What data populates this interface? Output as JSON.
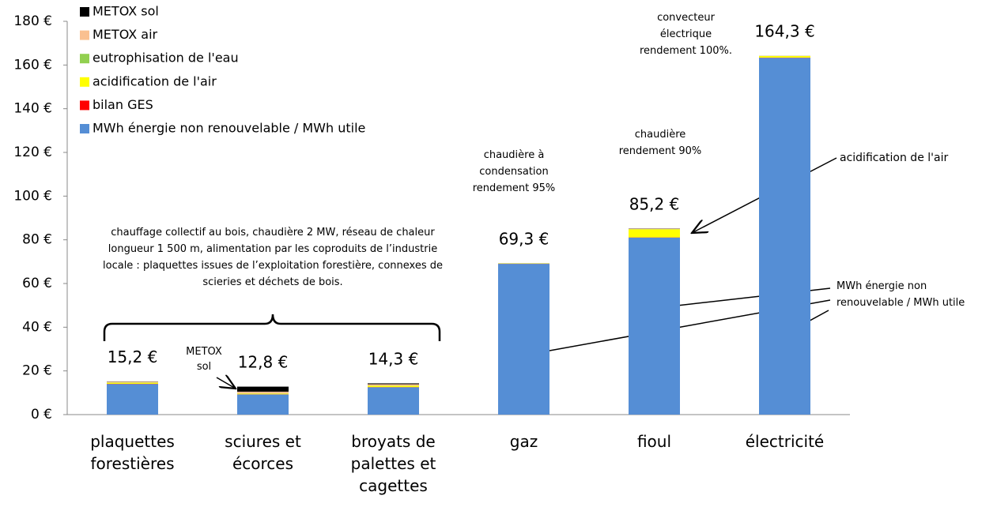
{
  "chart_data": {
    "type": "stacked_bar",
    "categories": [
      "plaquettes forestières",
      "sciures et écorces",
      "broyats de palettes et cagettes",
      "gaz",
      "fioul",
      "électricité"
    ],
    "series": [
      {
        "name": "MWh énergie non renouvelable / MWh utile",
        "color": "#558ed5",
        "values": [
          14,
          9.2,
          12.5,
          69,
          81,
          163.3
        ]
      },
      {
        "name": "bilan GES",
        "color": "#ff0000",
        "values": [
          0.1,
          0.1,
          0.1,
          0.1,
          0.1,
          0.1
        ]
      },
      {
        "name": "acidification de l'air",
        "color": "#ffff00",
        "values": [
          0.5,
          0.3,
          0.6,
          0.1,
          3.7,
          0.7
        ]
      },
      {
        "name": "eutrophisation de l'eau",
        "color": "#92d050",
        "values": [
          0.1,
          0.1,
          0.1,
          0.1,
          0.1,
          0.1
        ]
      },
      {
        "name": "METOX air",
        "color": "#fac090",
        "values": [
          0.4,
          0.8,
          0.6,
          0,
          0.2,
          0.1
        ]
      },
      {
        "name": "METOX sol",
        "color": "#000000",
        "values": [
          0.1,
          2.3,
          0.4,
          0,
          0.1,
          0
        ]
      }
    ],
    "total_labels": [
      "15,2 €",
      "12,8 €",
      "14,3 €",
      "69,3 €",
      "85,2 €",
      "164,3 €"
    ],
    "ylim": [
      0,
      180
    ],
    "yticks": [
      {
        "value": 0,
        "label": "0 €"
      },
      {
        "value": 20,
        "label": "20 €"
      },
      {
        "value": 40,
        "label": "40 €"
      },
      {
        "value": 60,
        "label": "60 €"
      },
      {
        "value": 80,
        "label": "80 €"
      },
      {
        "value": 100,
        "label": "100 €"
      },
      {
        "value": 120,
        "label": "120 €"
      },
      {
        "value": 140,
        "label": "140 €"
      },
      {
        "value": 160,
        "label": "160 €"
      },
      {
        "value": 180,
        "label": "180 €"
      }
    ],
    "legend": "top-left",
    "annotations": [
      "chauffage collectif au bois, chaudière 2 MW, réseau de chaleur longueur 1 500 m, alimentation par les coproduits de l’industrie locale : plaquettes issues de l’exploitation forestière, connexes de scieries et déchets de bois.",
      "METOX sol",
      "chaudière à condensation rendement 95%",
      "chaudière rendement 90%",
      "convecteur électrique rendement 100%.",
      "acidification de l'air",
      "MWh énergie non renouvelable / MWh utile"
    ]
  }
}
